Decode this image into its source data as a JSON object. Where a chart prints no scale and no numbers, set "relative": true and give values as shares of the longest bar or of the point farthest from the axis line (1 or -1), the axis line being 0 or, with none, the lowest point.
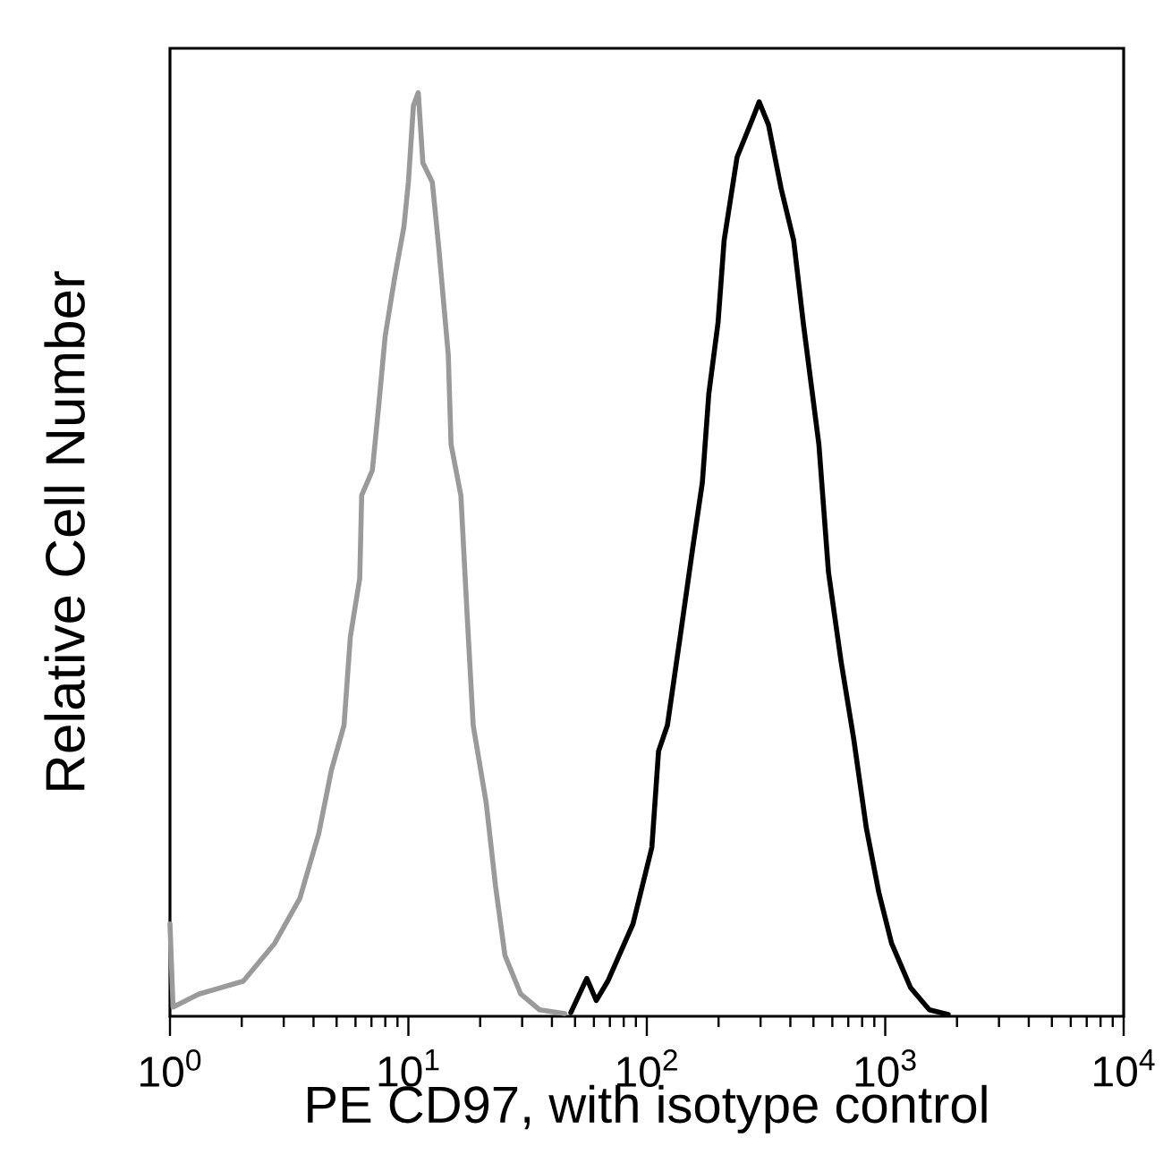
{
  "chart_data": {
    "type": "line",
    "xlabel": "PE CD97, with isotype control",
    "ylabel": "Relative Cell Number",
    "relative": true,
    "log": "x",
    "marker": "none",
    "line_style": "solid",
    "xlim": [
      1,
      10000
    ],
    "xticks": [
      {
        "value": 1,
        "label": "10$^{0}$"
      },
      {
        "value": 10,
        "label": "10$^{1}$"
      },
      {
        "value": 100,
        "label": "10$^{2}$"
      },
      {
        "value": 1000,
        "label": "10$^{3}$"
      },
      {
        "value": 10000,
        "label": "10$^{4}$"
      }
    ],
    "series": [
      {
        "color": "#9a9a9a",
        "x": [
          1,
          1.03,
          1.32,
          2.03,
          2.75,
          3.51,
          4.21,
          4.75,
          5.37,
          5.71,
          6.25,
          6.37,
          7.06,
          7.51,
          7.99,
          8.75,
          9.58,
          10.0,
          10.5,
          11.0,
          11.5,
          12.6,
          13.4,
          14.7,
          15.1,
          16.6,
          17.6,
          18.7,
          21.2,
          23.2,
          25.4,
          29.6,
          35.5,
          45.3
        ],
        "values": [
          0.1,
          0.01,
          0.024,
          0.038,
          0.079,
          0.128,
          0.198,
          0.266,
          0.315,
          0.411,
          0.474,
          0.564,
          0.591,
          0.661,
          0.736,
          0.799,
          0.855,
          0.903,
          0.986,
          1.0,
          0.924,
          0.903,
          0.833,
          0.716,
          0.619,
          0.564,
          0.439,
          0.315,
          0.231,
          0.141,
          0.066,
          0.024,
          0.007,
          0.003
        ]
      },
      {
        "color": "#000000",
        "x": [
          48,
          56,
          61.4,
          68.6,
          87.5,
          105,
          112,
          122,
          138,
          156,
          171,
          182,
          199,
          211,
          239,
          278,
          296,
          324,
          366,
          413,
          453,
          527,
          578,
          653,
          737,
          833,
          940,
          1063,
          1277,
          1531,
          1837
        ],
        "values": [
          0.004,
          0.041,
          0.017,
          0.038,
          0.1,
          0.183,
          0.287,
          0.315,
          0.411,
          0.508,
          0.578,
          0.674,
          0.751,
          0.84,
          0.93,
          0.972,
          0.99,
          0.965,
          0.896,
          0.84,
          0.751,
          0.619,
          0.481,
          0.384,
          0.301,
          0.204,
          0.134,
          0.079,
          0.031,
          0.007,
          0.002
        ]
      }
    ]
  }
}
